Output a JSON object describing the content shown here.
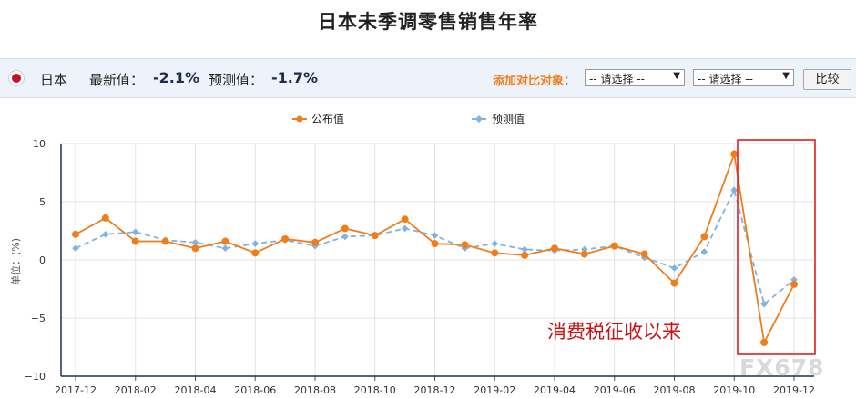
{
  "page": {
    "title": "日本未季调零售销售年率"
  },
  "info_bar": {
    "country": "日本",
    "latest_label": "最新值：",
    "latest_value": "-2.1%",
    "forecast_label": "预测值：",
    "forecast_value": "-1.7%",
    "compare_label": "添加对比对象：",
    "select1_value": "-- 请选择 --",
    "select2_value": "-- 请选择 --",
    "compare_button": "比较",
    "flag_icon": "japan-flag-icon"
  },
  "chart_data": {
    "type": "line",
    "ylabel": "单位：(%)",
    "ylim": [
      -10,
      10
    ],
    "yticks": [
      "10",
      "5",
      "0",
      "−5",
      "−10"
    ],
    "xtick_labels": [
      "2017-12",
      "2018-02",
      "2018-04",
      "2018-06",
      "2018-08",
      "2018-10",
      "2018-12",
      "2019-02",
      "2019-04",
      "2019-06",
      "2019-08",
      "2019-10",
      "2019-12"
    ],
    "categories": [
      "2017-12",
      "2018-01",
      "2018-02",
      "2018-03",
      "2018-04",
      "2018-05",
      "2018-06",
      "2018-07",
      "2018-08",
      "2018-09",
      "2018-10",
      "2018-11",
      "2018-12",
      "2019-01",
      "2019-02",
      "2019-03",
      "2019-04",
      "2019-05",
      "2019-06",
      "2019-07",
      "2019-08",
      "2019-09",
      "2019-10",
      "2019-11",
      "2019-12"
    ],
    "series": [
      {
        "name": "公布值",
        "color": "#f07d1a",
        "dashed": false,
        "marker": "circle",
        "values": [
          2.2,
          3.6,
          1.6,
          1.6,
          1.0,
          1.6,
          0.6,
          1.8,
          1.5,
          2.7,
          2.1,
          3.5,
          1.4,
          1.3,
          0.6,
          0.4,
          1.0,
          0.5,
          1.2,
          0.5,
          -2.0,
          2.0,
          9.1,
          -7.1,
          -2.1
        ]
      },
      {
        "name": "预测值",
        "color": "#7fb2e5",
        "dashed": true,
        "marker": "diamond",
        "values": [
          1.0,
          2.2,
          2.4,
          1.7,
          1.5,
          1.0,
          1.4,
          1.7,
          1.2,
          2.0,
          2.1,
          2.7,
          2.1,
          1.0,
          1.4,
          0.9,
          0.8,
          0.9,
          1.2,
          0.2,
          -0.7,
          0.7,
          6.0,
          -3.8,
          -1.7
        ]
      }
    ],
    "annotation": "消费税征收以来",
    "highlight_color": "#e02020",
    "watermark": "FX678"
  }
}
